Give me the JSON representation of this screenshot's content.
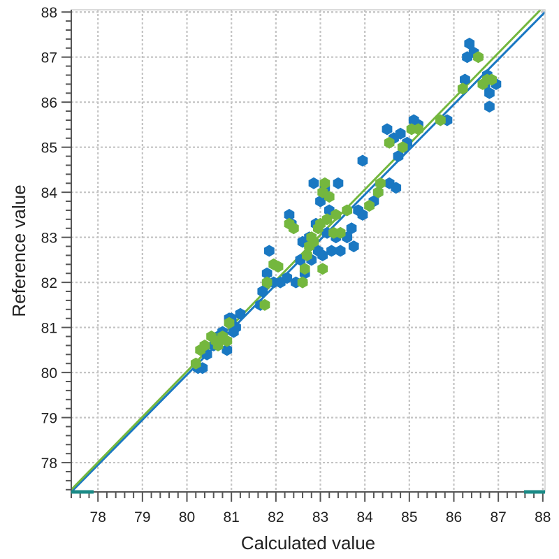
{
  "chart_data": {
    "type": "scatter",
    "title": "",
    "xlabel": "Calculated value",
    "ylabel": "Reference value",
    "xlim": [
      77.4,
      88.05
    ],
    "ylim": [
      77.35,
      88.05
    ],
    "x_ticks": [
      78,
      79,
      80,
      81,
      82,
      83,
      84,
      85,
      86,
      87,
      88
    ],
    "y_ticks": [
      78,
      79,
      80,
      81,
      82,
      83,
      84,
      85,
      86,
      87,
      88
    ],
    "grid": true,
    "legend": "none",
    "series": [
      {
        "color": "#1a78c2",
        "points": [
          [
            80.25,
            80.1
          ],
          [
            80.35,
            80.1
          ],
          [
            80.45,
            80.4
          ],
          [
            80.6,
            80.6
          ],
          [
            80.7,
            80.8
          ],
          [
            80.8,
            80.9
          ],
          [
            80.9,
            80.5
          ],
          [
            81.0,
            81.2
          ],
          [
            81.05,
            80.9
          ],
          [
            81.1,
            81.0
          ],
          [
            81.2,
            81.3
          ],
          [
            80.95,
            81.2
          ],
          [
            81.65,
            81.5
          ],
          [
            81.7,
            81.8
          ],
          [
            81.8,
            82.2
          ],
          [
            81.85,
            82.7
          ],
          [
            81.95,
            82.0
          ],
          [
            82.1,
            82.0
          ],
          [
            82.25,
            82.1
          ],
          [
            82.3,
            83.5
          ],
          [
            82.35,
            83.3
          ],
          [
            82.45,
            82.0
          ],
          [
            82.55,
            82.5
          ],
          [
            82.6,
            82.9
          ],
          [
            82.65,
            82.2
          ],
          [
            82.75,
            83.0
          ],
          [
            82.8,
            82.5
          ],
          [
            82.85,
            84.2
          ],
          [
            82.9,
            83.3
          ],
          [
            82.95,
            82.7
          ],
          [
            83.0,
            83.8
          ],
          [
            83.05,
            82.6
          ],
          [
            83.1,
            84.1
          ],
          [
            83.15,
            83.1
          ],
          [
            83.2,
            83.6
          ],
          [
            83.25,
            82.7
          ],
          [
            83.35,
            83.0
          ],
          [
            83.4,
            84.2
          ],
          [
            83.45,
            82.7
          ],
          [
            83.6,
            83.0
          ],
          [
            83.7,
            83.2
          ],
          [
            83.75,
            82.8
          ],
          [
            83.85,
            83.6
          ],
          [
            83.95,
            83.5
          ],
          [
            83.95,
            84.7
          ],
          [
            84.2,
            83.8
          ],
          [
            84.3,
            84.0
          ],
          [
            84.5,
            85.4
          ],
          [
            84.55,
            84.2
          ],
          [
            84.65,
            85.2
          ],
          [
            84.7,
            84.1
          ],
          [
            84.75,
            84.8
          ],
          [
            84.8,
            85.3
          ],
          [
            84.9,
            85.0
          ],
          [
            84.95,
            85.1
          ],
          [
            85.1,
            85.6
          ],
          [
            85.2,
            85.5
          ],
          [
            85.85,
            85.6
          ],
          [
            86.25,
            86.5
          ],
          [
            86.3,
            87.0
          ],
          [
            86.35,
            87.3
          ],
          [
            86.45,
            87.1
          ],
          [
            86.7,
            86.4
          ],
          [
            86.75,
            86.6
          ],
          [
            86.8,
            86.2
          ],
          [
            86.8,
            85.9
          ],
          [
            86.95,
            86.4
          ]
        ]
      },
      {
        "color": "#74b73e",
        "points": [
          [
            80.2,
            80.2
          ],
          [
            80.3,
            80.5
          ],
          [
            80.4,
            80.6
          ],
          [
            80.55,
            80.8
          ],
          [
            80.65,
            80.7
          ],
          [
            80.7,
            80.6
          ],
          [
            80.8,
            80.8
          ],
          [
            80.9,
            80.7
          ],
          [
            80.95,
            81.1
          ],
          [
            81.75,
            81.5
          ],
          [
            81.8,
            82.0
          ],
          [
            81.95,
            82.4
          ],
          [
            82.05,
            82.35
          ],
          [
            82.3,
            83.3
          ],
          [
            82.4,
            83.2
          ],
          [
            82.6,
            82.0
          ],
          [
            82.65,
            82.3
          ],
          [
            82.7,
            82.6
          ],
          [
            82.75,
            82.8
          ],
          [
            82.8,
            83.0
          ],
          [
            82.85,
            82.9
          ],
          [
            82.95,
            83.2
          ],
          [
            83.0,
            83.3
          ],
          [
            83.05,
            82.3
          ],
          [
            83.05,
            84.0
          ],
          [
            83.1,
            84.2
          ],
          [
            83.15,
            83.4
          ],
          [
            83.2,
            83.9
          ],
          [
            83.3,
            83.1
          ],
          [
            83.35,
            83.5
          ],
          [
            83.45,
            83.1
          ],
          [
            83.6,
            83.6
          ],
          [
            84.1,
            83.7
          ],
          [
            84.3,
            84.0
          ],
          [
            84.35,
            84.2
          ],
          [
            84.55,
            85.1
          ],
          [
            84.85,
            85.0
          ],
          [
            85.05,
            85.4
          ],
          [
            85.2,
            85.4
          ],
          [
            85.7,
            85.6
          ],
          [
            86.2,
            86.3
          ],
          [
            86.55,
            87.0
          ],
          [
            86.65,
            86.4
          ],
          [
            86.75,
            86.5
          ],
          [
            86.85,
            86.5
          ]
        ]
      }
    ],
    "lines": [
      {
        "color": "#1a78c2",
        "x": [
          77.4,
          88.05
        ],
        "y": [
          77.35,
          88.0
        ]
      },
      {
        "color": "#74b73e",
        "x": [
          77.4,
          87.95
        ],
        "y": [
          77.4,
          88.05
        ]
      }
    ]
  }
}
